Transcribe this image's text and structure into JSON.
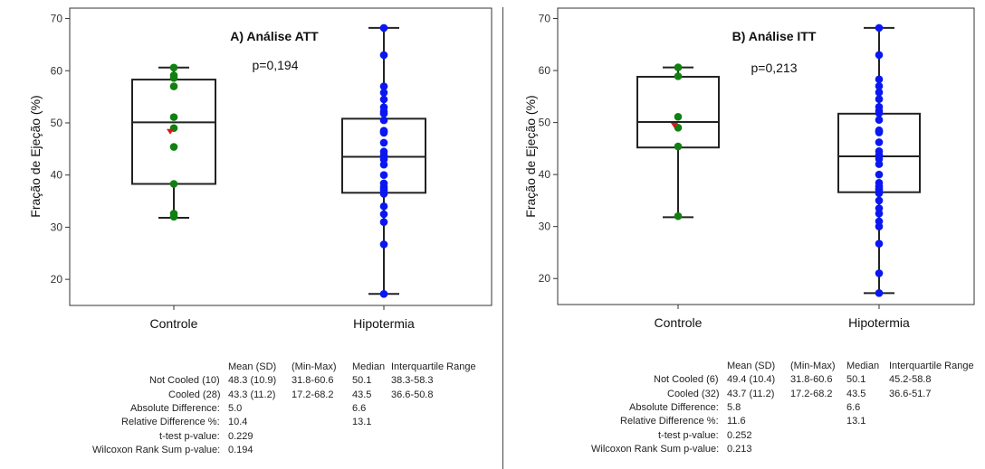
{
  "charts": [
    {
      "type": "box",
      "title": "A) Análise ATT",
      "annotation": "p=0,194",
      "ylabel": "Fração de Ejeção (%)",
      "ylim": [
        15,
        72
      ],
      "yticks": [
        20,
        30,
        40,
        50,
        60,
        70
      ],
      "categories": [
        "Controle",
        "Hipotermia"
      ],
      "boxes": [
        {
          "min": 31.8,
          "q1": 38.3,
          "median": 50.1,
          "q3": 58.3,
          "max": 60.6,
          "mean": 48.3,
          "color": "#118011",
          "points": [
            60.6,
            59.1,
            58.6,
            57.0,
            51.1,
            49.0,
            45.4,
            38.3,
            32.6,
            32.0
          ]
        },
        {
          "min": 17.2,
          "q1": 36.6,
          "median": 43.5,
          "q3": 50.8,
          "max": 68.2,
          "mean": 43.3,
          "color": "#0a17f2",
          "points": [
            68.2,
            63.0,
            57.0,
            55.8,
            54.5,
            53.0,
            52.2,
            51.8,
            50.5,
            48.5,
            48.3,
            48.1,
            46.2,
            44.5,
            43.8,
            43.0,
            42.0,
            40.0,
            38.4,
            37.7,
            37.3,
            37.0,
            36.4,
            34.0,
            32.5,
            31.0,
            26.7,
            17.2
          ]
        }
      ],
      "stats": {
        "headers": [
          "Mean (SD)",
          "(Min-Max)",
          "Median",
          "Interquartile Range"
        ],
        "rows": [
          {
            "label": "Not Cooled (10)",
            "cells": [
              "48.3 (10.9)",
              "31.8-60.6",
              "50.1",
              "38.3-58.3"
            ]
          },
          {
            "label": "Cooled (28)",
            "cells": [
              "43.3 (11.2)",
              "17.2-68.2",
              "43.5",
              "36.6-50.8"
            ]
          },
          {
            "label": "Absolute Difference:",
            "cells": [
              "5.0",
              "",
              "6.6",
              ""
            ]
          },
          {
            "label": "Relative Difference %:",
            "cells": [
              "10.4",
              "",
              "13.1",
              ""
            ]
          },
          {
            "label": "t-test p-value:",
            "cells": [
              "0.229",
              "",
              "",
              ""
            ]
          },
          {
            "label": "Wilcoxon Rank Sum p-value:",
            "cells": [
              "0.194",
              "",
              "",
              ""
            ]
          }
        ]
      }
    },
    {
      "type": "box",
      "title": "B) Análise ITT",
      "annotation": "p=0,213",
      "ylabel": "Fração de Ejeção (%)",
      "ylim": [
        15,
        72
      ],
      "yticks": [
        20,
        30,
        40,
        50,
        60,
        70
      ],
      "categories": [
        "Controle",
        "Hipotermia"
      ],
      "boxes": [
        {
          "min": 31.8,
          "q1": 45.2,
          "median": 50.1,
          "q3": 58.8,
          "max": 60.6,
          "mean": 49.4,
          "color": "#118011",
          "points": [
            60.6,
            58.9,
            51.1,
            49.0,
            45.4,
            32.0
          ]
        },
        {
          "min": 17.2,
          "q1": 36.6,
          "median": 43.5,
          "q3": 51.7,
          "max": 68.2,
          "mean": 43.7,
          "color": "#0a17f2",
          "points": [
            68.2,
            63.0,
            58.3,
            57.0,
            55.8,
            54.5,
            53.0,
            52.2,
            51.8,
            50.5,
            48.5,
            48.3,
            48.1,
            46.2,
            44.5,
            43.8,
            43.0,
            42.0,
            40.0,
            38.4,
            37.7,
            37.3,
            37.0,
            36.4,
            35.0,
            33.5,
            32.5,
            31.0,
            30.0,
            26.7,
            21.0,
            17.2
          ]
        }
      ],
      "stats": {
        "headers": [
          "Mean (SD)",
          "(Min-Max)",
          "Median",
          "Interquartile Range"
        ],
        "rows": [
          {
            "label": "Not Cooled (6)",
            "cells": [
              "49.4 (10.4)",
              "31.8-60.6",
              "50.1",
              "45.2-58.8"
            ]
          },
          {
            "label": "Cooled (32)",
            "cells": [
              "43.7 (11.2)",
              "17.2-68.2",
              "43.5",
              "36.6-51.7"
            ]
          },
          {
            "label": "Absolute Difference:",
            "cells": [
              "5.8",
              "",
              "6.6",
              ""
            ]
          },
          {
            "label": "Relative Difference %:",
            "cells": [
              "11.6",
              "",
              "13.1",
              ""
            ]
          },
          {
            "label": "t-test p-value:",
            "cells": [
              "0.252",
              "",
              "",
              ""
            ]
          },
          {
            "label": "Wilcoxon Rank Sum p-value:",
            "cells": [
              "0.213",
              "",
              "",
              ""
            ]
          }
        ]
      }
    }
  ]
}
